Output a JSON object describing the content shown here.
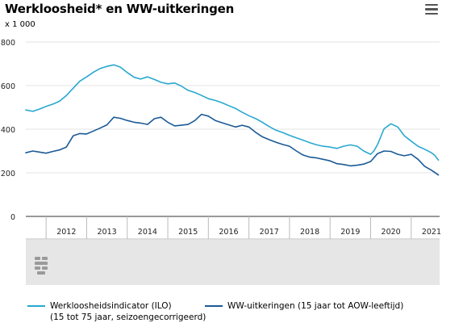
{
  "header": {
    "title": "Werkloosheid* en WW-uitkeringen",
    "menu_icon": "hamburger-menu-icon"
  },
  "colors": {
    "ilo": "#29a8cf",
    "ww": "#1b5a96",
    "navigator_bg": "#e6e6e6",
    "axis": "#333333"
  },
  "chart_data": {
    "type": "line",
    "y_unit": "x 1 000",
    "ylim": [
      0,
      800
    ],
    "y_ticks": [
      0,
      200,
      400,
      600,
      800
    ],
    "xlim": [
      2011.5,
      2021.7
    ],
    "x_tick_labels": [
      "2012",
      "2013",
      "2014",
      "2015",
      "2016",
      "2017",
      "2018",
      "2019",
      "2020",
      "2021"
    ],
    "grid": "horizontal",
    "legend": "bottom",
    "series": [
      {
        "name": "Werkloosheidsindicator (ILO)",
        "name_line2": "(15 tot 75 jaar, seizoengecorrigeerd)",
        "color_key": "ilo",
        "points": [
          [
            2011.5,
            488
          ],
          [
            2011.67,
            482
          ],
          [
            2011.83,
            492
          ],
          [
            2012.0,
            505
          ],
          [
            2012.17,
            515
          ],
          [
            2012.33,
            528
          ],
          [
            2012.5,
            555
          ],
          [
            2012.67,
            588
          ],
          [
            2012.83,
            620
          ],
          [
            2013.0,
            640
          ],
          [
            2013.17,
            662
          ],
          [
            2013.33,
            678
          ],
          [
            2013.5,
            688
          ],
          [
            2013.67,
            695
          ],
          [
            2013.83,
            685
          ],
          [
            2014.0,
            660
          ],
          [
            2014.17,
            638
          ],
          [
            2014.33,
            630
          ],
          [
            2014.5,
            640
          ],
          [
            2014.67,
            628
          ],
          [
            2014.83,
            615
          ],
          [
            2015.0,
            608
          ],
          [
            2015.17,
            612
          ],
          [
            2015.33,
            598
          ],
          [
            2015.5,
            578
          ],
          [
            2015.67,
            568
          ],
          [
            2015.83,
            555
          ],
          [
            2016.0,
            540
          ],
          [
            2016.17,
            532
          ],
          [
            2016.33,
            522
          ],
          [
            2016.5,
            508
          ],
          [
            2016.67,
            495
          ],
          [
            2016.83,
            478
          ],
          [
            2017.0,
            462
          ],
          [
            2017.17,
            448
          ],
          [
            2017.33,
            432
          ],
          [
            2017.5,
            412
          ],
          [
            2017.67,
            395
          ],
          [
            2017.83,
            385
          ],
          [
            2018.0,
            372
          ],
          [
            2018.17,
            360
          ],
          [
            2018.33,
            350
          ],
          [
            2018.5,
            338
          ],
          [
            2018.67,
            328
          ],
          [
            2018.83,
            322
          ],
          [
            2019.0,
            318
          ],
          [
            2019.17,
            312
          ],
          [
            2019.33,
            322
          ],
          [
            2019.5,
            328
          ],
          [
            2019.67,
            322
          ],
          [
            2019.83,
            300
          ],
          [
            2020.0,
            285
          ],
          [
            2020.08,
            300
          ],
          [
            2020.17,
            330
          ],
          [
            2020.33,
            402
          ],
          [
            2020.5,
            425
          ],
          [
            2020.67,
            410
          ],
          [
            2020.83,
            370
          ],
          [
            2021.0,
            345
          ],
          [
            2021.17,
            322
          ],
          [
            2021.33,
            308
          ],
          [
            2021.5,
            292
          ],
          [
            2021.58,
            280
          ],
          [
            2021.67,
            258
          ]
        ]
      },
      {
        "name": "WW-uitkeringen (15 jaar tot AOW-leeftijd)",
        "color_key": "ww",
        "points": [
          [
            2011.5,
            292
          ],
          [
            2011.67,
            300
          ],
          [
            2011.83,
            295
          ],
          [
            2012.0,
            290
          ],
          [
            2012.17,
            298
          ],
          [
            2012.33,
            305
          ],
          [
            2012.5,
            318
          ],
          [
            2012.67,
            370
          ],
          [
            2012.83,
            380
          ],
          [
            2013.0,
            378
          ],
          [
            2013.17,
            392
          ],
          [
            2013.33,
            405
          ],
          [
            2013.5,
            420
          ],
          [
            2013.67,
            455
          ],
          [
            2013.83,
            450
          ],
          [
            2014.0,
            440
          ],
          [
            2014.17,
            432
          ],
          [
            2014.33,
            428
          ],
          [
            2014.5,
            422
          ],
          [
            2014.67,
            448
          ],
          [
            2014.83,
            455
          ],
          [
            2015.0,
            432
          ],
          [
            2015.17,
            415
          ],
          [
            2015.33,
            418
          ],
          [
            2015.5,
            422
          ],
          [
            2015.67,
            440
          ],
          [
            2015.83,
            468
          ],
          [
            2016.0,
            460
          ],
          [
            2016.17,
            440
          ],
          [
            2016.33,
            430
          ],
          [
            2016.5,
            420
          ],
          [
            2016.67,
            410
          ],
          [
            2016.83,
            418
          ],
          [
            2017.0,
            410
          ],
          [
            2017.17,
            385
          ],
          [
            2017.33,
            365
          ],
          [
            2017.5,
            352
          ],
          [
            2017.67,
            340
          ],
          [
            2017.83,
            330
          ],
          [
            2018.0,
            322
          ],
          [
            2018.17,
            300
          ],
          [
            2018.33,
            282
          ],
          [
            2018.5,
            272
          ],
          [
            2018.67,
            268
          ],
          [
            2018.83,
            262
          ],
          [
            2019.0,
            255
          ],
          [
            2019.17,
            242
          ],
          [
            2019.33,
            238
          ],
          [
            2019.5,
            232
          ],
          [
            2019.67,
            235
          ],
          [
            2019.83,
            240
          ],
          [
            2020.0,
            252
          ],
          [
            2020.17,
            288
          ],
          [
            2020.33,
            300
          ],
          [
            2020.5,
            298
          ],
          [
            2020.67,
            285
          ],
          [
            2020.83,
            278
          ],
          [
            2021.0,
            285
          ],
          [
            2021.17,
            262
          ],
          [
            2021.33,
            230
          ],
          [
            2021.5,
            212
          ],
          [
            2021.67,
            190
          ]
        ]
      }
    ]
  }
}
